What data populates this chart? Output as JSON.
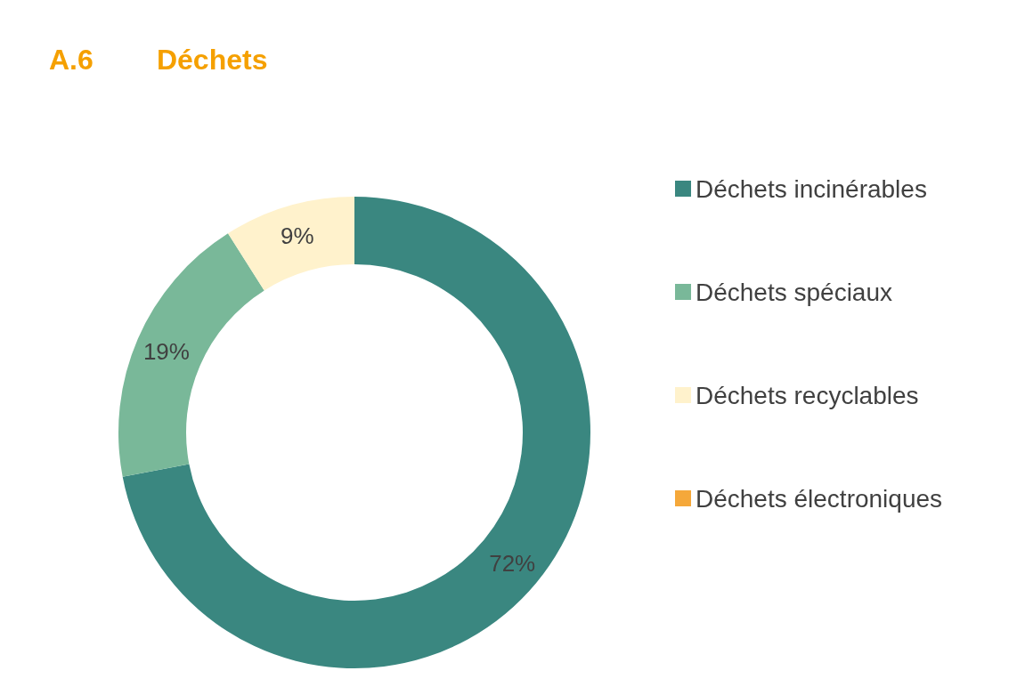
{
  "chart_data": {
    "type": "donut",
    "title": "A.6        Déchets",
    "categories": [
      "Déchets incinérables",
      "Déchets spéciaux",
      "Déchets recyclables",
      "Déchets électroniques"
    ],
    "values": [
      72,
      19,
      9,
      0
    ],
    "colors": [
      "#3a8780",
      "#79b899",
      "#fff2cc",
      "#f5a83a"
    ],
    "value_labels": [
      "72%",
      "19%",
      "9%",
      null
    ],
    "legend": "right"
  }
}
